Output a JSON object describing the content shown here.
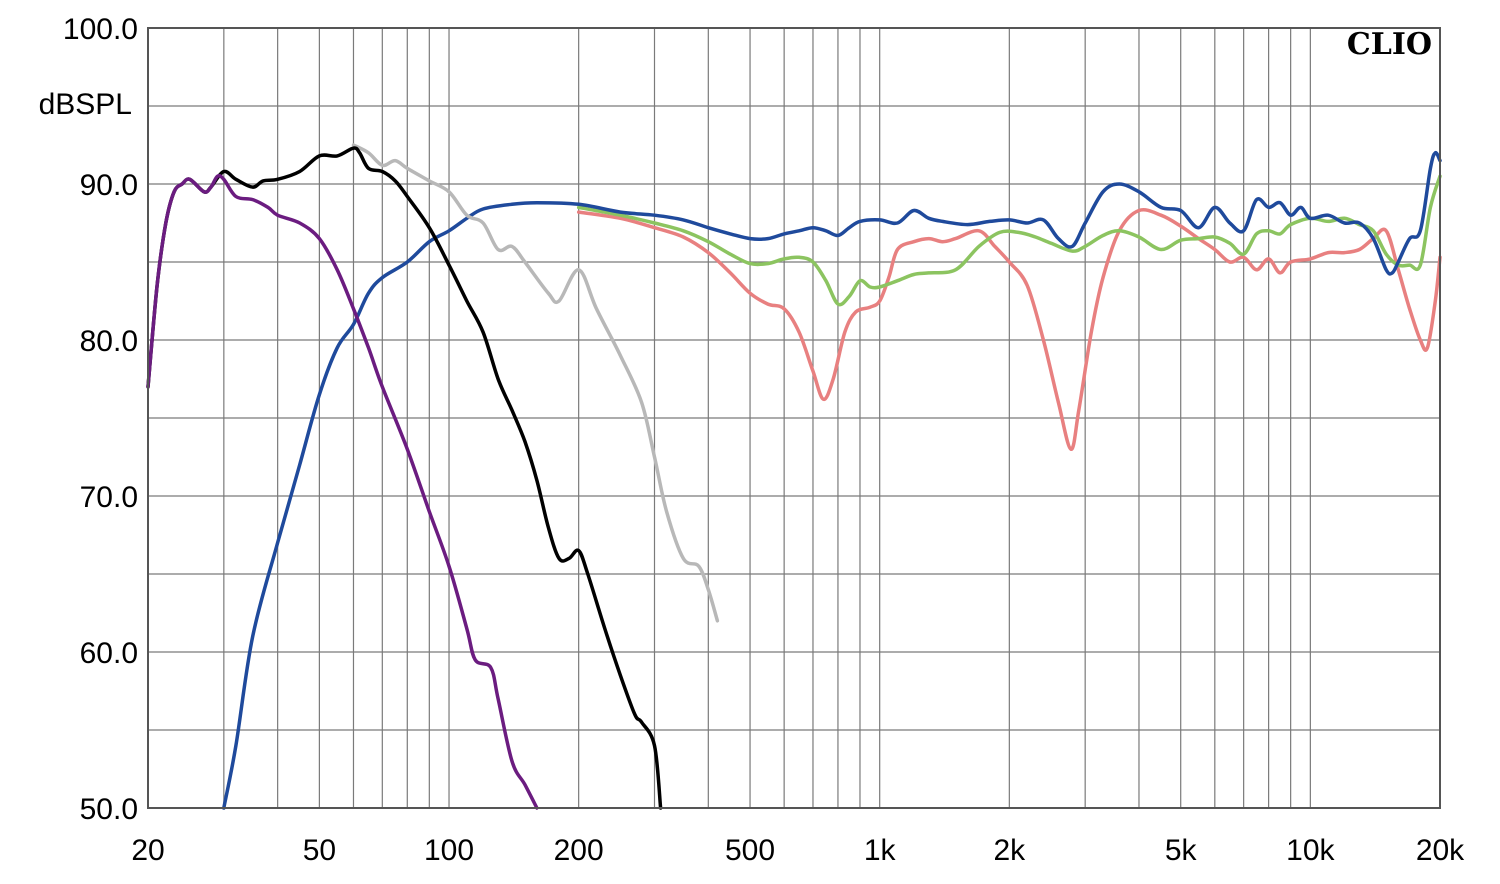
{
  "chart_data": {
    "type": "line",
    "brand": "CLIO",
    "y_unit_label": "dBSPL",
    "xscale": "log",
    "xlim": [
      20,
      20000
    ],
    "ylim": [
      50,
      100
    ],
    "grid": true,
    "legend": "none",
    "x_tick_labels": [
      {
        "value": 20,
        "label": "20"
      },
      {
        "value": 50,
        "label": "50"
      },
      {
        "value": 100,
        "label": "100"
      },
      {
        "value": 200,
        "label": "200"
      },
      {
        "value": 500,
        "label": "500"
      },
      {
        "value": 1000,
        "label": "1k"
      },
      {
        "value": 2000,
        "label": "2k"
      },
      {
        "value": 5000,
        "label": "5k"
      },
      {
        "value": 10000,
        "label": "10k"
      },
      {
        "value": 20000,
        "label": "20k"
      }
    ],
    "y_tick_labels": [
      {
        "value": 100,
        "label": "100.0"
      },
      {
        "value": 90,
        "label": "90.0"
      },
      {
        "value": 80,
        "label": "80.0"
      },
      {
        "value": 70,
        "label": "70.0"
      },
      {
        "value": 60,
        "label": "60.0"
      },
      {
        "value": 50,
        "label": "50.0"
      }
    ],
    "series": [
      {
        "color": "#e88080",
        "points": [
          [
            200,
            88.2
          ],
          [
            250,
            87.8
          ],
          [
            300,
            87.2
          ],
          [
            350,
            86.6
          ],
          [
            400,
            85.6
          ],
          [
            450,
            84.3
          ],
          [
            500,
            83.0
          ],
          [
            550,
            82.3
          ],
          [
            600,
            82.0
          ],
          [
            650,
            80.5
          ],
          [
            700,
            78.0
          ],
          [
            740,
            76.2
          ],
          [
            780,
            77.5
          ],
          [
            830,
            80.5
          ],
          [
            880,
            81.8
          ],
          [
            950,
            82.1
          ],
          [
            1000,
            82.5
          ],
          [
            1050,
            84.0
          ],
          [
            1100,
            85.8
          ],
          [
            1200,
            86.3
          ],
          [
            1300,
            86.5
          ],
          [
            1400,
            86.3
          ],
          [
            1500,
            86.5
          ],
          [
            1700,
            87.0
          ],
          [
            1850,
            86.0
          ],
          [
            2000,
            85.0
          ],
          [
            2200,
            83.5
          ],
          [
            2400,
            80.0
          ],
          [
            2600,
            76.0
          ],
          [
            2780,
            73.0
          ],
          [
            2900,
            75.5
          ],
          [
            3100,
            80.5
          ],
          [
            3300,
            84.0
          ],
          [
            3600,
            87.0
          ],
          [
            4000,
            88.3
          ],
          [
            4500,
            88.0
          ],
          [
            5000,
            87.3
          ],
          [
            5500,
            86.5
          ],
          [
            6000,
            85.8
          ],
          [
            6500,
            85.0
          ],
          [
            7000,
            85.3
          ],
          [
            7500,
            84.5
          ],
          [
            8000,
            85.2
          ],
          [
            8500,
            84.3
          ],
          [
            9000,
            85.0
          ],
          [
            10000,
            85.2
          ],
          [
            11000,
            85.6
          ],
          [
            12000,
            85.6
          ],
          [
            13000,
            85.8
          ],
          [
            14000,
            86.5
          ],
          [
            15000,
            87.0
          ],
          [
            16000,
            84.5
          ],
          [
            17000,
            82.0
          ],
          [
            18000,
            80.0
          ],
          [
            18700,
            79.5
          ],
          [
            19500,
            82.5
          ],
          [
            20000,
            85.3
          ]
        ]
      },
      {
        "color": "#8cc460",
        "points": [
          [
            200,
            88.5
          ],
          [
            250,
            88.0
          ],
          [
            300,
            87.5
          ],
          [
            350,
            87.0
          ],
          [
            400,
            86.3
          ],
          [
            450,
            85.5
          ],
          [
            500,
            84.9
          ],
          [
            550,
            84.9
          ],
          [
            600,
            85.2
          ],
          [
            650,
            85.3
          ],
          [
            700,
            85.0
          ],
          [
            750,
            83.8
          ],
          [
            800,
            82.3
          ],
          [
            850,
            82.8
          ],
          [
            900,
            83.8
          ],
          [
            950,
            83.4
          ],
          [
            1000,
            83.4
          ],
          [
            1100,
            83.8
          ],
          [
            1200,
            84.2
          ],
          [
            1300,
            84.3
          ],
          [
            1500,
            84.5
          ],
          [
            1700,
            86.0
          ],
          [
            1900,
            86.9
          ],
          [
            2100,
            86.9
          ],
          [
            2300,
            86.6
          ],
          [
            2500,
            86.2
          ],
          [
            2800,
            85.7
          ],
          [
            3000,
            86.0
          ],
          [
            3300,
            86.7
          ],
          [
            3600,
            87.0
          ],
          [
            4000,
            86.6
          ],
          [
            4500,
            85.8
          ],
          [
            5000,
            86.4
          ],
          [
            5500,
            86.5
          ],
          [
            6000,
            86.6
          ],
          [
            6500,
            86.2
          ],
          [
            7000,
            85.5
          ],
          [
            7500,
            86.8
          ],
          [
            8000,
            87.0
          ],
          [
            8500,
            86.8
          ],
          [
            9000,
            87.4
          ],
          [
            10000,
            87.8
          ],
          [
            11000,
            87.6
          ],
          [
            12000,
            87.8
          ],
          [
            13000,
            87.4
          ],
          [
            14000,
            87.0
          ],
          [
            15000,
            85.5
          ],
          [
            16000,
            84.8
          ],
          [
            17000,
            84.8
          ],
          [
            18000,
            84.8
          ],
          [
            19000,
            88.5
          ],
          [
            20000,
            90.5
          ]
        ]
      },
      {
        "color": "#1f4a9c",
        "points": [
          [
            30,
            50.0
          ],
          [
            32,
            54.0
          ],
          [
            35,
            61.0
          ],
          [
            40,
            67.0
          ],
          [
            45,
            72.0
          ],
          [
            50,
            76.5
          ],
          [
            55,
            79.5
          ],
          [
            60,
            81.0
          ],
          [
            65,
            83.0
          ],
          [
            70,
            84.0
          ],
          [
            80,
            85.0
          ],
          [
            90,
            86.3
          ],
          [
            100,
            87.0
          ],
          [
            110,
            87.8
          ],
          [
            120,
            88.4
          ],
          [
            140,
            88.7
          ],
          [
            160,
            88.8
          ],
          [
            200,
            88.7
          ],
          [
            250,
            88.2
          ],
          [
            300,
            88.0
          ],
          [
            350,
            87.7
          ],
          [
            400,
            87.2
          ],
          [
            450,
            86.8
          ],
          [
            500,
            86.5
          ],
          [
            550,
            86.5
          ],
          [
            600,
            86.8
          ],
          [
            650,
            87.0
          ],
          [
            700,
            87.2
          ],
          [
            750,
            87.0
          ],
          [
            800,
            86.7
          ],
          [
            850,
            87.2
          ],
          [
            900,
            87.6
          ],
          [
            1000,
            87.7
          ],
          [
            1100,
            87.5
          ],
          [
            1200,
            88.3
          ],
          [
            1300,
            87.8
          ],
          [
            1400,
            87.6
          ],
          [
            1600,
            87.4
          ],
          [
            1800,
            87.6
          ],
          [
            2000,
            87.7
          ],
          [
            2200,
            87.5
          ],
          [
            2400,
            87.7
          ],
          [
            2600,
            86.5
          ],
          [
            2800,
            86.0
          ],
          [
            3000,
            87.5
          ],
          [
            3300,
            89.5
          ],
          [
            3600,
            90.0
          ],
          [
            4000,
            89.5
          ],
          [
            4500,
            88.5
          ],
          [
            5000,
            88.3
          ],
          [
            5500,
            87.2
          ],
          [
            6000,
            88.5
          ],
          [
            6500,
            87.5
          ],
          [
            7000,
            87.0
          ],
          [
            7500,
            89.0
          ],
          [
            8000,
            88.5
          ],
          [
            8500,
            88.8
          ],
          [
            9000,
            88.0
          ],
          [
            9500,
            88.5
          ],
          [
            10000,
            87.8
          ],
          [
            11000,
            88.0
          ],
          [
            12000,
            87.5
          ],
          [
            13000,
            87.5
          ],
          [
            14000,
            86.5
          ],
          [
            15000,
            84.5
          ],
          [
            15500,
            84.3
          ],
          [
            16000,
            85.0
          ],
          [
            17000,
            86.5
          ],
          [
            18000,
            87.0
          ],
          [
            19000,
            91.0
          ],
          [
            19500,
            92.0
          ],
          [
            20000,
            91.5
          ]
        ]
      },
      {
        "color": "#b8b8b8",
        "points": [
          [
            60,
            92.5
          ],
          [
            65,
            92.0
          ],
          [
            70,
            91.2
          ],
          [
            75,
            91.5
          ],
          [
            80,
            91.0
          ],
          [
            90,
            90.2
          ],
          [
            100,
            89.5
          ],
          [
            110,
            88.0
          ],
          [
            120,
            87.5
          ],
          [
            130,
            85.8
          ],
          [
            140,
            86.0
          ],
          [
            150,
            85.0
          ],
          [
            170,
            83.0
          ],
          [
            180,
            82.5
          ],
          [
            200,
            84.5
          ],
          [
            220,
            82.0
          ],
          [
            250,
            79.0
          ],
          [
            280,
            76.0
          ],
          [
            300,
            72.5
          ],
          [
            320,
            69.0
          ],
          [
            350,
            66.0
          ],
          [
            380,
            65.5
          ],
          [
            400,
            64.0
          ],
          [
            420,
            62.0
          ]
        ]
      },
      {
        "color": "#000000",
        "points": [
          [
            20,
            77.0
          ],
          [
            21,
            83.5
          ],
          [
            22,
            87.5
          ],
          [
            23,
            89.5
          ],
          [
            24,
            90.0
          ],
          [
            25,
            90.3
          ],
          [
            27,
            89.5
          ],
          [
            28,
            89.8
          ],
          [
            30,
            90.8
          ],
          [
            32,
            90.3
          ],
          [
            35,
            89.8
          ],
          [
            37,
            90.2
          ],
          [
            40,
            90.3
          ],
          [
            45,
            90.8
          ],
          [
            50,
            91.8
          ],
          [
            55,
            91.8
          ],
          [
            60,
            92.3
          ],
          [
            62,
            92.0
          ],
          [
            65,
            91.0
          ],
          [
            70,
            90.8
          ],
          [
            75,
            90.2
          ],
          [
            80,
            89.2
          ],
          [
            90,
            87.2
          ],
          [
            100,
            84.8
          ],
          [
            110,
            82.5
          ],
          [
            120,
            80.5
          ],
          [
            130,
            77.5
          ],
          [
            140,
            75.5
          ],
          [
            150,
            73.5
          ],
          [
            160,
            71.0
          ],
          [
            170,
            68.0
          ],
          [
            180,
            66.0
          ],
          [
            190,
            66.0
          ],
          [
            200,
            66.5
          ],
          [
            210,
            65.0
          ],
          [
            230,
            61.5
          ],
          [
            250,
            58.5
          ],
          [
            270,
            56.0
          ],
          [
            280,
            55.5
          ],
          [
            300,
            54.0
          ],
          [
            310,
            50.0
          ]
        ]
      },
      {
        "color": "#6b1c80",
        "points": [
          [
            20,
            77.0
          ],
          [
            21,
            83.5
          ],
          [
            22,
            87.5
          ],
          [
            23,
            89.5
          ],
          [
            24,
            90.0
          ],
          [
            25,
            90.3
          ],
          [
            27,
            89.5
          ],
          [
            28,
            89.8
          ],
          [
            29,
            90.5
          ],
          [
            30,
            90.3
          ],
          [
            32,
            89.2
          ],
          [
            35,
            89.0
          ],
          [
            38,
            88.5
          ],
          [
            40,
            88.0
          ],
          [
            45,
            87.5
          ],
          [
            50,
            86.5
          ],
          [
            55,
            84.5
          ],
          [
            60,
            82.0
          ],
          [
            65,
            79.5
          ],
          [
            70,
            77.0
          ],
          [
            80,
            73.0
          ],
          [
            90,
            69.0
          ],
          [
            100,
            65.5
          ],
          [
            110,
            61.5
          ],
          [
            115,
            59.5
          ],
          [
            125,
            59.0
          ],
          [
            130,
            57.0
          ],
          [
            140,
            53.0
          ],
          [
            150,
            51.5
          ],
          [
            160,
            50.0
          ]
        ]
      }
    ]
  }
}
